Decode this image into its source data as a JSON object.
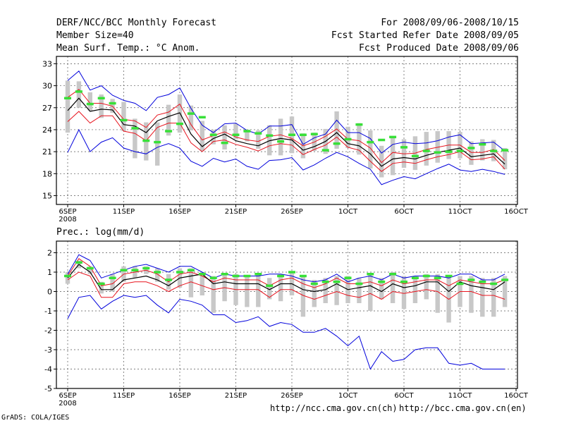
{
  "header": {
    "title": "DERF/NCC/BCC Monthly Forecast",
    "member_size": "Member Size=40",
    "period": "For 2008/09/06-2008/10/15",
    "fcst_started": "Fcst Started Refer Date 2008/09/05",
    "fcst_produced": "Fcst Produced Date 2008/09/06"
  },
  "footer": {
    "credit": "GrADS: COLA/IGES",
    "url_ncc": "http://ncc.cma.gov.cn(ch)",
    "url_bcc": "http://bcc.cma.gov.cn(en)"
  },
  "colors": {
    "mean": "#000000",
    "spread_red": "#e8141e",
    "extreme_blue": "#0000dc",
    "ensemble_box": "#c8c8c8",
    "observed": "#38e038"
  },
  "chart_data": [
    {
      "type": "line",
      "title": "Mean Surf. Temp.: °C Anom.",
      "xlabel": "",
      "ylabel": "",
      "x_ticks": [
        "6SEP",
        "11SEP",
        "16SEP",
        "21SEP",
        "26SEP",
        "1OCT",
        "6OCT",
        "11OCT",
        "16OCT"
      ],
      "x_year_label": "2008",
      "y_ticks": [
        15,
        18,
        21,
        24,
        27,
        30,
        33
      ],
      "ylim": [
        13.8,
        34
      ],
      "days": 40,
      "series": [
        {
          "name": "max",
          "color": "#0000dc",
          "values": [
            30.7,
            32.0,
            29.4,
            30.0,
            28.7,
            28.0,
            27.6,
            26.6,
            28.4,
            28.8,
            29.7,
            26.9,
            24.6,
            23.6,
            24.8,
            24.9,
            23.9,
            23.4,
            24.5,
            24.5,
            24.7,
            22.0,
            22.9,
            23.4,
            25.3,
            23.6,
            23.6,
            22.8,
            20.8,
            22.0,
            22.3,
            22.1,
            22.2,
            22.5,
            23.0,
            23.3,
            22.1,
            22.2,
            22.3,
            21.1
          ]
        },
        {
          "name": "upper",
          "color": "#e8141e",
          "values": [
            28.4,
            29.5,
            27.6,
            27.6,
            27.2,
            25.4,
            25.2,
            24.3,
            26.0,
            26.4,
            27.5,
            24.7,
            22.6,
            23.2,
            23.7,
            23.0,
            22.6,
            22.4,
            23.1,
            23.3,
            22.8,
            21.8,
            22.3,
            23.1,
            24.1,
            22.7,
            22.5,
            21.5,
            19.5,
            20.9,
            20.7,
            20.8,
            21.3,
            21.6,
            21.9,
            21.9,
            20.9,
            20.9,
            21.3,
            19.8
          ]
        },
        {
          "name": "mean",
          "color": "#000000",
          "values": [
            26.6,
            28.3,
            26.5,
            26.8,
            26.7,
            24.7,
            24.5,
            23.6,
            25.2,
            25.8,
            26.3,
            23.4,
            21.7,
            22.8,
            23.4,
            22.5,
            22.1,
            21.8,
            22.5,
            22.8,
            22.6,
            21.2,
            21.7,
            22.4,
            23.6,
            22.1,
            21.8,
            20.7,
            19.0,
            20.0,
            20.2,
            20.0,
            20.5,
            20.9,
            21.2,
            21.5,
            20.3,
            20.5,
            20.7,
            19.3
          ]
        },
        {
          "name": "lower",
          "color": "#e8141e",
          "values": [
            25.1,
            26.5,
            24.9,
            25.9,
            25.9,
            23.8,
            23.5,
            22.5,
            24.3,
            24.9,
            24.9,
            22.2,
            21.0,
            22.4,
            22.6,
            22.0,
            21.6,
            21.1,
            21.8,
            22.1,
            21.9,
            20.6,
            21.3,
            21.9,
            23.0,
            21.6,
            21.2,
            19.7,
            18.3,
            19.4,
            19.6,
            19.4,
            19.9,
            20.3,
            20.6,
            21.0,
            19.9,
            20.0,
            20.3,
            18.6
          ]
        },
        {
          "name": "min",
          "color": "#0000dc",
          "values": [
            20.9,
            24.0,
            21.0,
            22.3,
            22.9,
            21.5,
            21.0,
            20.7,
            21.6,
            22.1,
            21.5,
            19.7,
            19.0,
            20.1,
            19.6,
            20.0,
            19.0,
            18.6,
            19.8,
            19.9,
            20.2,
            18.5,
            19.2,
            20.1,
            20.9,
            20.3,
            19.4,
            18.6,
            16.5,
            17.1,
            17.6,
            17.3,
            18.0,
            18.7,
            19.3,
            18.5,
            18.3,
            18.6,
            18.3,
            17.9
          ]
        },
        {
          "name": "observed",
          "color": "#38e038",
          "values": [
            28.3,
            29.2,
            27.5,
            28.3,
            27.6,
            25.3,
            24.2,
            22.5,
            22.3,
            23.8,
            24.8,
            26.2,
            25.7,
            23.3,
            22.2,
            23.3,
            23.8,
            23.5,
            23.2,
            22.4,
            23.3,
            23.3,
            23.4,
            21.2,
            22.1,
            22.7,
            24.7,
            22.3,
            22.6,
            23.0,
            21.6,
            20.4,
            21.1,
            20.9,
            21.0,
            21.1,
            21.5,
            22.0,
            21.1,
            21.2
          ]
        }
      ],
      "box_low": [
        23.6,
        27.0,
        26.6,
        25.6,
        26.3,
        23.8,
        20.1,
        19.8,
        19.1,
        23.2,
        23.6,
        23.9,
        21.1,
        22.0,
        21.3,
        22.7,
        22.4,
        21.4,
        20.5,
        20.5,
        20.8,
        20.1,
        21.1,
        20.7,
        21.4,
        21.5,
        20.6,
        18.7,
        17.5,
        17.8,
        18.8,
        18.5,
        19.1,
        19.5,
        20.0,
        20.1,
        19.2,
        19.8,
        19.7,
        18.6
      ],
      "box_high": [
        30.7,
        30.6,
        29.1,
        28.8,
        28.2,
        27.8,
        25.5,
        25.0,
        25.0,
        27.4,
        28.8,
        27.3,
        25.2,
        24.0,
        24.6,
        24.8,
        24.0,
        23.9,
        24.6,
        25.5,
        25.8,
        23.5,
        23.6,
        24.1,
        26.5,
        24.4,
        24.9,
        23.9,
        21.8,
        22.9,
        22.7,
        23.1,
        23.7,
        23.8,
        23.8,
        23.7,
        22.4,
        22.7,
        22.6,
        21.5
      ]
    },
    {
      "type": "line",
      "title": "Prec.: log(mm/d)",
      "xlabel": "",
      "ylabel": "",
      "x_ticks": [
        "6SEP",
        "11SEP",
        "16SEP",
        "21SEP",
        "26SEP",
        "1OCT",
        "6OCT",
        "11OCT",
        "16OCT"
      ],
      "x_year_label": "2008",
      "y_ticks": [
        -5,
        -4,
        -3,
        -2,
        -1,
        0,
        1,
        2
      ],
      "ylim": [
        -5,
        2.6
      ],
      "days": 40,
      "series": [
        {
          "name": "max",
          "color": "#0000dc",
          "values": [
            0.9,
            1.9,
            1.6,
            0.7,
            0.9,
            1.1,
            1.3,
            1.4,
            1.2,
            1.0,
            1.3,
            1.3,
            1.0,
            0.7,
            0.9,
            0.8,
            0.8,
            0.8,
            0.9,
            0.9,
            0.8,
            0.6,
            0.5,
            0.6,
            0.9,
            0.5,
            0.7,
            0.8,
            0.6,
            0.9,
            0.7,
            0.8,
            0.8,
            0.8,
            0.7,
            0.9,
            0.9,
            0.6,
            0.6,
            0.9
          ]
        },
        {
          "name": "upper",
          "color": "#e8141e",
          "values": [
            0.8,
            1.7,
            1.3,
            0.3,
            0.4,
            0.9,
            1.0,
            1.1,
            0.9,
            0.5,
            0.9,
            1.0,
            0.8,
            0.5,
            0.7,
            0.6,
            0.6,
            0.6,
            0.3,
            0.6,
            0.7,
            0.4,
            0.2,
            0.4,
            0.7,
            0.4,
            0.4,
            0.5,
            0.3,
            0.6,
            0.4,
            0.5,
            0.6,
            0.6,
            0.3,
            0.6,
            0.5,
            0.4,
            0.4,
            0.6
          ]
        },
        {
          "name": "mean",
          "color": "#000000",
          "values": [
            0.7,
            1.4,
            1.0,
            0.1,
            0.1,
            0.6,
            0.7,
            0.8,
            0.6,
            0.3,
            0.7,
            0.8,
            0.9,
            0.4,
            0.5,
            0.4,
            0.4,
            0.4,
            0.1,
            0.4,
            0.4,
            0.1,
            0.0,
            0.1,
            0.4,
            0.1,
            0.2,
            0.3,
            0.0,
            0.4,
            0.2,
            0.3,
            0.5,
            0.5,
            0.0,
            0.5,
            0.3,
            0.2,
            0.1,
            0.5
          ]
        },
        {
          "name": "lower",
          "color": "#e8141e",
          "values": [
            0.6,
            1.0,
            0.8,
            -0.3,
            -0.3,
            0.4,
            0.5,
            0.5,
            0.3,
            0.0,
            0.3,
            0.5,
            0.3,
            0.1,
            0.2,
            0.1,
            0.1,
            0.1,
            -0.3,
            0.1,
            0.1,
            -0.2,
            -0.4,
            -0.2,
            0.0,
            -0.2,
            -0.3,
            -0.1,
            -0.4,
            0.0,
            -0.1,
            0.0,
            0.1,
            0.0,
            -0.4,
            0.0,
            0.0,
            -0.2,
            -0.2,
            -0.4
          ]
        },
        {
          "name": "min",
          "color": "#0000dc",
          "values": [
            -1.4,
            -0.3,
            -0.2,
            -0.9,
            -0.5,
            -0.2,
            -0.3,
            -0.2,
            -0.7,
            -1.1,
            -0.4,
            -0.5,
            -0.7,
            -1.2,
            -1.2,
            -1.6,
            -1.5,
            -1.3,
            -1.8,
            -1.6,
            -1.7,
            -2.1,
            -2.1,
            -1.9,
            -2.3,
            -2.8,
            -2.3,
            -4.0,
            -3.1,
            -3.6,
            -3.5,
            -3.0,
            -2.9,
            -2.9,
            -3.7,
            -3.8,
            -3.7,
            -4.0,
            -4.0,
            -4.0
          ]
        },
        {
          "name": "observed",
          "color": "#38e038",
          "values": [
            0.8,
            1.5,
            1.2,
            0.4,
            0.7,
            1.1,
            1.1,
            1.2,
            1.0,
            0.6,
            1.0,
            1.1,
            0.9,
            0.7,
            0.9,
            0.8,
            0.8,
            0.9,
            0.3,
            0.8,
            1.0,
            0.8,
            0.4,
            0.5,
            0.5,
            0.7,
            0.4,
            0.9,
            0.5,
            0.9,
            0.5,
            0.7,
            0.8,
            0.7,
            0.8,
            0.4,
            0.6,
            0.5,
            0.4,
            0.6
          ]
        }
      ],
      "box_low": [
        0.4,
        1.2,
        0.9,
        -0.1,
        0.0,
        0.5,
        0.7,
        0.9,
        0.5,
        0.1,
        0.2,
        -0.3,
        -0.2,
        -1.1,
        -0.5,
        -0.7,
        -0.8,
        -0.8,
        -0.4,
        -0.5,
        -0.2,
        -1.3,
        -0.8,
        -0.6,
        -0.7,
        -0.6,
        -0.6,
        -1.0,
        -0.4,
        -0.6,
        -0.9,
        -0.6,
        -0.4,
        -1.1,
        -1.6,
        -0.8,
        -1.1,
        -1.3,
        -1.3,
        -0.8
      ],
      "box_high": [
        1.0,
        1.6,
        1.3,
        0.5,
        0.9,
        1.3,
        1.3,
        1.3,
        1.2,
        0.9,
        1.2,
        1.2,
        1.0,
        0.8,
        0.9,
        0.9,
        0.8,
        0.9,
        0.7,
        0.9,
        1.0,
        0.8,
        0.6,
        0.7,
        0.8,
        0.8,
        0.7,
        0.9,
        0.7,
        1.0,
        0.8,
        0.8,
        0.9,
        0.9,
        0.8,
        0.8,
        0.8,
        0.7,
        0.7,
        0.8
      ]
    }
  ]
}
